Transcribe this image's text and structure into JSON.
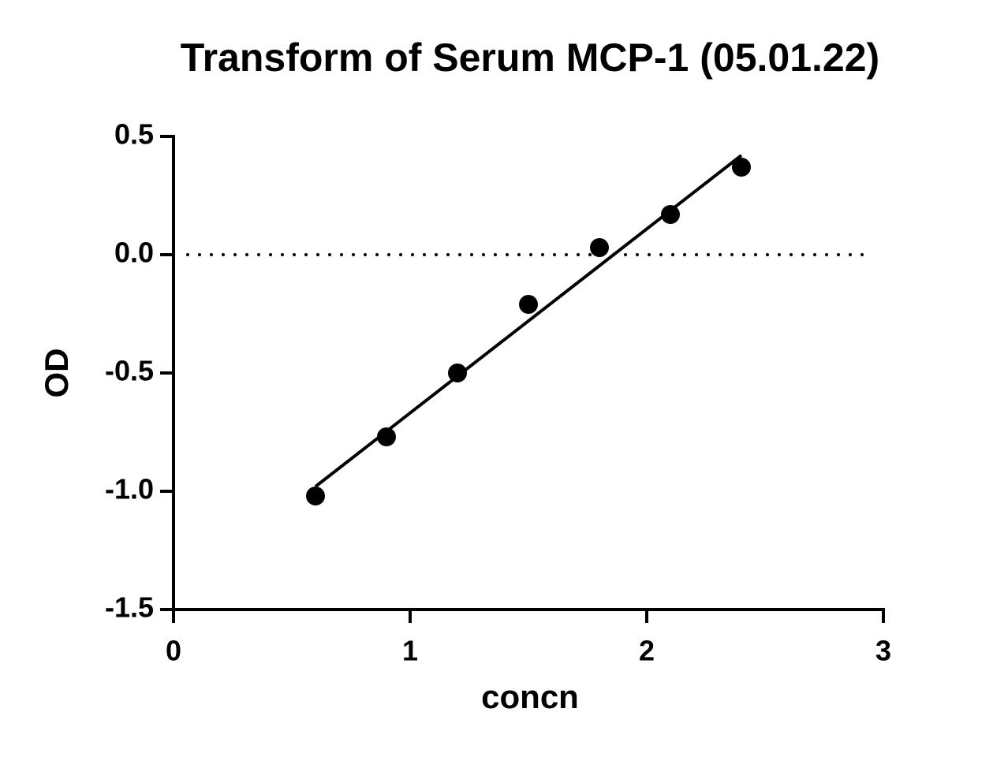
{
  "chart_data": {
    "type": "scatter",
    "title": "Transform of Serum MCP-1 (05.01.22)",
    "x_label": "concn",
    "y_label": "OD",
    "xlim": [
      0,
      3
    ],
    "xticks": [
      0,
      1,
      2,
      3
    ],
    "ylim": [
      -1.5,
      0.5
    ],
    "yticks": [
      -1.5,
      {
        "value": -1,
        "label": "-1.0"
      },
      -0.5,
      {
        "value": 0,
        "label": "0.0"
      },
      0.5
    ],
    "grid": false,
    "reference_line": {
      "value": 0,
      "style": "dotted"
    },
    "series": [
      {
        "type": "scatter",
        "color": "#000000",
        "x": [
          0.6,
          0.9,
          1.2,
          1.5,
          1.8,
          2.1,
          2.4
        ],
        "values": [
          -1.02,
          -0.77,
          -0.5,
          -0.21,
          0.03,
          0.17,
          0.37
        ]
      },
      {
        "type": "line",
        "color": "#000000",
        "x": [
          0.6,
          2.4
        ],
        "values": [
          -0.98,
          0.42
        ]
      }
    ]
  }
}
